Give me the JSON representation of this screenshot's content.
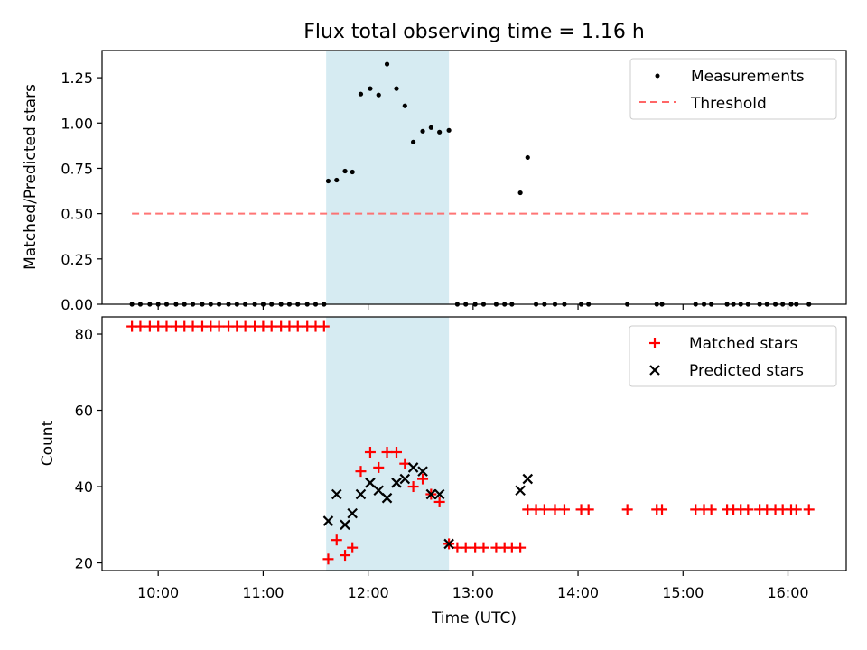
{
  "chart_data": [
    {
      "type": "scatter",
      "title": "Flux total observing time = 1.16 h",
      "xlabel": "",
      "ylabel": "Matched/Predicted stars",
      "xlim_hours": [
        9.465,
        16.555
      ],
      "ylim": [
        0,
        1.4
      ],
      "yticks": [
        0.0,
        0.25,
        0.5,
        0.75,
        1.0,
        1.25
      ],
      "ytick_labels": [
        "0.00",
        "0.25",
        "0.50",
        "0.75",
        "1.00",
        "1.25"
      ],
      "highlight_span_hours": [
        11.6,
        12.77
      ],
      "threshold": {
        "value": 0.5,
        "x_range": [
          9.75,
          16.2
        ]
      },
      "legend": [
        "Measurements",
        "Threshold"
      ],
      "legend_loc": "upper-right",
      "series": [
        {
          "name": "Measurements",
          "points": [
            [
              9.75,
              0
            ],
            [
              9.83,
              0
            ],
            [
              9.92,
              0
            ],
            [
              10.0,
              0
            ],
            [
              10.08,
              0
            ],
            [
              10.17,
              0
            ],
            [
              10.25,
              0
            ],
            [
              10.33,
              0
            ],
            [
              10.42,
              0
            ],
            [
              10.5,
              0
            ],
            [
              10.58,
              0
            ],
            [
              10.67,
              0
            ],
            [
              10.75,
              0
            ],
            [
              10.83,
              0
            ],
            [
              10.92,
              0
            ],
            [
              11.0,
              0
            ],
            [
              11.08,
              0
            ],
            [
              11.17,
              0
            ],
            [
              11.25,
              0
            ],
            [
              11.33,
              0
            ],
            [
              11.42,
              0
            ],
            [
              11.5,
              0
            ],
            [
              11.58,
              0
            ],
            [
              11.62,
              0.68
            ],
            [
              11.7,
              0.685
            ],
            [
              11.78,
              0.735
            ],
            [
              11.85,
              0.73
            ],
            [
              11.93,
              1.16
            ],
            [
              12.02,
              1.19
            ],
            [
              12.1,
              1.155
            ],
            [
              12.18,
              1.325
            ],
            [
              12.27,
              1.19
            ],
            [
              12.35,
              1.095
            ],
            [
              12.43,
              0.895
            ],
            [
              12.52,
              0.955
            ],
            [
              12.6,
              0.975
            ],
            [
              12.68,
              0.95
            ],
            [
              12.77,
              0.96
            ],
            [
              12.85,
              0
            ],
            [
              12.93,
              0
            ],
            [
              13.02,
              0
            ],
            [
              13.1,
              0
            ],
            [
              13.22,
              0
            ],
            [
              13.3,
              0
            ],
            [
              13.37,
              0
            ],
            [
              13.45,
              0.615
            ],
            [
              13.52,
              0.81
            ],
            [
              13.6,
              0
            ],
            [
              13.68,
              0
            ],
            [
              13.78,
              0
            ],
            [
              13.87,
              0
            ],
            [
              14.03,
              0
            ],
            [
              14.1,
              0
            ],
            [
              14.47,
              0
            ],
            [
              14.75,
              0
            ],
            [
              14.8,
              0
            ],
            [
              15.12,
              0
            ],
            [
              15.2,
              0
            ],
            [
              15.27,
              0
            ],
            [
              15.42,
              0
            ],
            [
              15.48,
              0
            ],
            [
              15.55,
              0
            ],
            [
              15.62,
              0
            ],
            [
              15.73,
              0
            ],
            [
              15.8,
              0
            ],
            [
              15.88,
              0
            ],
            [
              15.95,
              0
            ],
            [
              16.03,
              0
            ],
            [
              16.08,
              0
            ],
            [
              16.2,
              0
            ]
          ]
        }
      ]
    },
    {
      "type": "scatter",
      "title": "",
      "xlabel": "Time (UTC)",
      "ylabel": "Count",
      "xlim_hours": [
        9.465,
        16.555
      ],
      "ylim": [
        18,
        84.5
      ],
      "yticks": [
        20,
        40,
        60,
        80
      ],
      "ytick_labels": [
        "20",
        "40",
        "60",
        "80"
      ],
      "xticks_hours": [
        10,
        11,
        12,
        13,
        14,
        15,
        16
      ],
      "xtick_labels": [
        "10:00",
        "11:00",
        "12:00",
        "13:00",
        "14:00",
        "15:00",
        "16:00"
      ],
      "highlight_span_hours": [
        11.6,
        12.77
      ],
      "legend": [
        "Matched stars",
        "Predicted stars"
      ],
      "legend_loc": "upper-right",
      "series": [
        {
          "name": "Matched stars",
          "marker": "plus",
          "points": [
            [
              9.75,
              82
            ],
            [
              9.83,
              82
            ],
            [
              9.92,
              82
            ],
            [
              10.0,
              82
            ],
            [
              10.08,
              82
            ],
            [
              10.17,
              82
            ],
            [
              10.25,
              82
            ],
            [
              10.33,
              82
            ],
            [
              10.42,
              82
            ],
            [
              10.5,
              82
            ],
            [
              10.58,
              82
            ],
            [
              10.67,
              82
            ],
            [
              10.75,
              82
            ],
            [
              10.83,
              82
            ],
            [
              10.92,
              82
            ],
            [
              11.0,
              82
            ],
            [
              11.08,
              82
            ],
            [
              11.17,
              82
            ],
            [
              11.25,
              82
            ],
            [
              11.33,
              82
            ],
            [
              11.42,
              82
            ],
            [
              11.5,
              82
            ],
            [
              11.58,
              82
            ],
            [
              11.62,
              21
            ],
            [
              11.7,
              26
            ],
            [
              11.78,
              22
            ],
            [
              11.85,
              24
            ],
            [
              11.93,
              44
            ],
            [
              12.02,
              49
            ],
            [
              12.1,
              45
            ],
            [
              12.18,
              49
            ],
            [
              12.27,
              49
            ],
            [
              12.35,
              46
            ],
            [
              12.43,
              40
            ],
            [
              12.52,
              42
            ],
            [
              12.6,
              38
            ],
            [
              12.68,
              36
            ],
            [
              12.77,
              25
            ],
            [
              12.85,
              24
            ],
            [
              12.93,
              24
            ],
            [
              13.02,
              24
            ],
            [
              13.1,
              24
            ],
            [
              13.22,
              24
            ],
            [
              13.3,
              24
            ],
            [
              13.37,
              24
            ],
            [
              13.45,
              24
            ],
            [
              13.52,
              34
            ],
            [
              13.6,
              34
            ],
            [
              13.68,
              34
            ],
            [
              13.78,
              34
            ],
            [
              13.87,
              34
            ],
            [
              14.03,
              34
            ],
            [
              14.1,
              34
            ],
            [
              14.47,
              34
            ],
            [
              14.75,
              34
            ],
            [
              14.8,
              34
            ],
            [
              15.12,
              34
            ],
            [
              15.2,
              34
            ],
            [
              15.27,
              34
            ],
            [
              15.42,
              34
            ],
            [
              15.48,
              34
            ],
            [
              15.55,
              34
            ],
            [
              15.62,
              34
            ],
            [
              15.73,
              34
            ],
            [
              15.8,
              34
            ],
            [
              15.88,
              34
            ],
            [
              15.95,
              34
            ],
            [
              16.03,
              34
            ],
            [
              16.08,
              34
            ],
            [
              16.2,
              34
            ]
          ]
        },
        {
          "name": "Predicted stars",
          "marker": "x",
          "points": [
            [
              11.62,
              31
            ],
            [
              11.7,
              38
            ],
            [
              11.78,
              30
            ],
            [
              11.85,
              33
            ],
            [
              11.93,
              38
            ],
            [
              12.02,
              41
            ],
            [
              12.1,
              39
            ],
            [
              12.18,
              37
            ],
            [
              12.27,
              41
            ],
            [
              12.35,
              42
            ],
            [
              12.43,
              45
            ],
            [
              12.52,
              44
            ],
            [
              12.6,
              38
            ],
            [
              12.68,
              38
            ],
            [
              12.77,
              25
            ],
            [
              13.45,
              39
            ],
            [
              13.52,
              42
            ]
          ]
        }
      ]
    }
  ]
}
